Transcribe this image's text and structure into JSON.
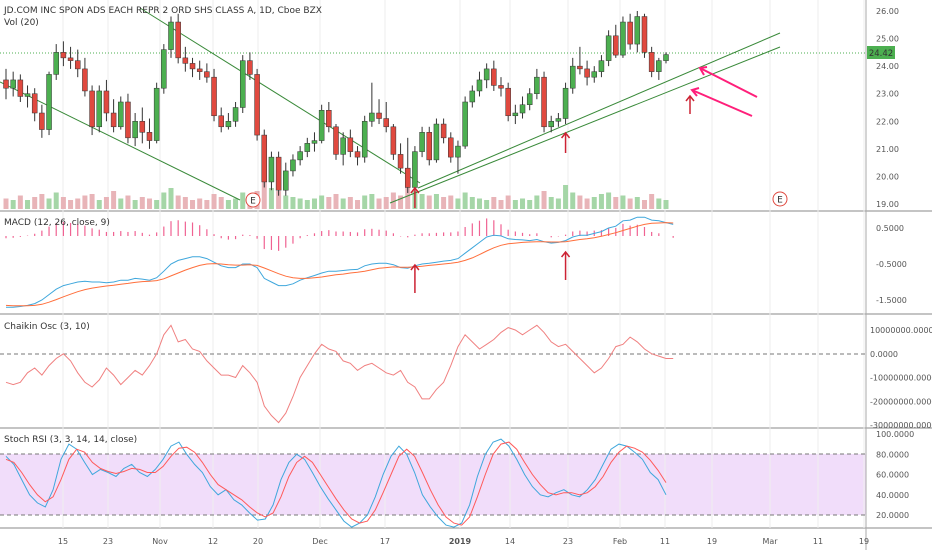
{
  "chart_data": {
    "type": "candlestick",
    "title": "JD.COM INC SPON ADS EACH REPR 2 ORD SHS CLASS A, 1D, Cboe BZX",
    "last_price": "24.42",
    "price_axis_ticks": [
      "26.00",
      "25.00",
      "24.00",
      "23.00",
      "22.00",
      "21.00",
      "20.00",
      "19.00"
    ],
    "time_axis_labels": [
      "15",
      "23",
      "Nov",
      "12",
      "20",
      "Dec",
      "17",
      "2019",
      "14",
      "23",
      "Feb",
      "11",
      "19",
      "Mar",
      "11",
      "19"
    ],
    "volume_label": "Vol (20)",
    "earnings_marker": "E",
    "colors": {
      "up": "#4caf50",
      "down": "#e0493f",
      "vol_up": "#a5d6a7",
      "vol_down": "#e8b4b8",
      "macd": "#3fa7dc",
      "signal": "#ff6f3c",
      "chaikin": "#f08080",
      "rsi_k": "#3fa7dc",
      "rsi_d": "#ff5a5a",
      "rsi_band": "#e7c7f7",
      "trendline": "#3a8a3a",
      "arrow": "#cc2233",
      "pink_arrow": "#ff1f7a"
    },
    "candles": [
      [
        23.5,
        23.9,
        22.8,
        23.2
      ],
      [
        23.2,
        23.8,
        22.9,
        23.5
      ],
      [
        23.5,
        23.7,
        22.7,
        22.9
      ],
      [
        22.9,
        23.3,
        22.5,
        23.0
      ],
      [
        23.0,
        23.2,
        22.0,
        22.3
      ],
      [
        22.3,
        22.6,
        21.4,
        21.7
      ],
      [
        21.7,
        23.8,
        21.5,
        23.7
      ],
      [
        23.7,
        24.8,
        23.5,
        24.5
      ],
      [
        24.5,
        24.9,
        24.0,
        24.3
      ],
      [
        24.3,
        24.7,
        23.9,
        24.2
      ],
      [
        24.2,
        24.6,
        23.6,
        23.9
      ],
      [
        23.9,
        24.3,
        22.9,
        23.1
      ],
      [
        23.1,
        23.3,
        21.5,
        21.8
      ],
      [
        21.8,
        23.3,
        21.6,
        23.1
      ],
      [
        23.1,
        23.5,
        22.0,
        22.3
      ],
      [
        22.3,
        22.8,
        21.6,
        21.8
      ],
      [
        21.8,
        22.9,
        21.7,
        22.7
      ],
      [
        22.7,
        23.0,
        21.2,
        21.4
      ],
      [
        21.4,
        22.3,
        21.1,
        22.0
      ],
      [
        22.0,
        22.5,
        21.2,
        21.6
      ],
      [
        21.6,
        22.1,
        21.0,
        21.3
      ],
      [
        21.3,
        23.4,
        21.2,
        23.2
      ],
      [
        23.2,
        24.8,
        23.0,
        24.6
      ],
      [
        24.6,
        25.8,
        24.3,
        25.6
      ],
      [
        25.6,
        25.9,
        24.1,
        24.3
      ],
      [
        24.3,
        24.7,
        23.8,
        24.1
      ],
      [
        24.1,
        24.3,
        23.6,
        23.9
      ],
      [
        23.9,
        24.2,
        23.5,
        23.8
      ],
      [
        23.8,
        24.1,
        23.4,
        23.6
      ],
      [
        23.6,
        23.9,
        22.0,
        22.2
      ],
      [
        22.2,
        22.5,
        21.6,
        21.8
      ],
      [
        21.8,
        22.3,
        21.7,
        22.0
      ],
      [
        22.0,
        22.7,
        21.8,
        22.5
      ],
      [
        22.5,
        24.4,
        22.3,
        24.2
      ],
      [
        24.2,
        24.5,
        23.5,
        23.7
      ],
      [
        23.7,
        23.9,
        21.3,
        21.5
      ],
      [
        21.5,
        21.7,
        19.6,
        19.8
      ],
      [
        19.8,
        20.9,
        19.5,
        20.7
      ],
      [
        20.7,
        20.9,
        19.3,
        19.5
      ],
      [
        19.5,
        20.5,
        19.3,
        20.2
      ],
      [
        20.2,
        20.8,
        20.0,
        20.6
      ],
      [
        20.6,
        21.1,
        20.4,
        20.9
      ],
      [
        20.9,
        21.4,
        20.7,
        21.2
      ],
      [
        21.2,
        21.6,
        20.9,
        21.3
      ],
      [
        21.3,
        22.6,
        21.2,
        22.4
      ],
      [
        22.4,
        22.7,
        21.6,
        21.8
      ],
      [
        21.8,
        21.9,
        20.6,
        20.8
      ],
      [
        20.8,
        21.6,
        20.4,
        21.4
      ],
      [
        21.4,
        21.7,
        20.7,
        20.9
      ],
      [
        20.9,
        21.1,
        20.4,
        20.7
      ],
      [
        20.7,
        22.2,
        20.5,
        22.0
      ],
      [
        22.0,
        23.4,
        21.8,
        22.3
      ],
      [
        22.3,
        22.8,
        21.9,
        22.1
      ],
      [
        22.1,
        22.7,
        21.6,
        21.8
      ],
      [
        21.8,
        21.9,
        20.6,
        20.8
      ],
      [
        20.8,
        21.2,
        20.1,
        20.3
      ],
      [
        20.3,
        21.4,
        19.4,
        19.6
      ],
      [
        19.6,
        21.1,
        19.5,
        20.9
      ],
      [
        20.9,
        21.8,
        20.7,
        21.6
      ],
      [
        21.6,
        21.8,
        20.4,
        20.6
      ],
      [
        20.6,
        22.1,
        20.5,
        21.9
      ],
      [
        21.9,
        22.1,
        21.2,
        21.4
      ],
      [
        21.4,
        21.6,
        20.5,
        20.7
      ],
      [
        20.7,
        21.3,
        20.1,
        21.1
      ],
      [
        21.1,
        22.9,
        21.0,
        22.7
      ],
      [
        22.7,
        23.3,
        22.5,
        23.1
      ],
      [
        23.1,
        23.8,
        22.9,
        23.5
      ],
      [
        23.5,
        24.1,
        23.2,
        23.9
      ],
      [
        23.9,
        24.2,
        23.1,
        23.3
      ],
      [
        23.3,
        23.6,
        22.9,
        23.2
      ],
      [
        23.2,
        23.4,
        22.0,
        22.2
      ],
      [
        22.2,
        22.6,
        21.9,
        22.3
      ],
      [
        22.3,
        22.9,
        22.1,
        22.6
      ],
      [
        22.6,
        23.2,
        22.4,
        23.0
      ],
      [
        23.0,
        23.9,
        22.8,
        23.6
      ],
      [
        23.6,
        23.8,
        21.6,
        21.8
      ],
      [
        21.8,
        22.2,
        21.6,
        22.0
      ],
      [
        22.0,
        22.3,
        21.8,
        22.1
      ],
      [
        22.1,
        23.4,
        21.9,
        23.2
      ],
      [
        23.2,
        24.3,
        23.0,
        24.0
      ],
      [
        24.0,
        24.7,
        23.7,
        23.9
      ],
      [
        23.9,
        24.2,
        23.3,
        23.6
      ],
      [
        23.6,
        24.0,
        23.4,
        23.8
      ],
      [
        23.8,
        24.4,
        23.6,
        24.2
      ],
      [
        24.2,
        25.3,
        24.0,
        25.1
      ],
      [
        25.1,
        25.5,
        24.3,
        24.4
      ],
      [
        24.4,
        25.8,
        24.3,
        25.6
      ],
      [
        25.6,
        25.9,
        24.6,
        24.8
      ],
      [
        24.8,
        26.0,
        24.5,
        25.8
      ],
      [
        25.8,
        25.9,
        24.3,
        24.5
      ],
      [
        24.5,
        24.7,
        23.6,
        23.8
      ],
      [
        23.8,
        24.3,
        23.5,
        24.2
      ],
      [
        24.2,
        24.5,
        24.1,
        24.42
      ]
    ],
    "volumes": [
      0.35,
      0.3,
      0.45,
      0.3,
      0.4,
      0.5,
      0.35,
      0.55,
      0.4,
      0.3,
      0.35,
      0.45,
      0.5,
      0.3,
      0.4,
      0.6,
      0.35,
      0.45,
      0.3,
      0.4,
      0.35,
      0.3,
      0.55,
      0.7,
      0.45,
      0.4,
      0.3,
      0.35,
      0.3,
      0.5,
      0.4,
      0.3,
      0.35,
      0.55,
      0.45,
      0.6,
      0.95,
      0.7,
      0.6,
      0.45,
      0.4,
      0.35,
      0.3,
      0.35,
      0.45,
      0.4,
      0.5,
      0.35,
      0.4,
      0.3,
      0.45,
      0.5,
      0.35,
      0.4,
      0.55,
      0.45,
      0.85,
      0.6,
      0.5,
      0.45,
      0.5,
      0.4,
      0.45,
      0.35,
      0.55,
      0.4,
      0.35,
      0.3,
      0.4,
      0.3,
      0.45,
      0.3,
      0.35,
      0.3,
      0.45,
      0.6,
      0.4,
      0.35,
      0.8,
      0.55,
      0.45,
      0.35,
      0.4,
      0.5,
      0.55,
      0.4,
      0.45,
      0.35,
      0.4,
      0.3,
      0.5,
      0.35,
      0.3,
      0.25
    ],
    "macd_label": "MACD (12, 26, close, 9)",
    "macd_ticks": [
      "0.5000",
      "-0.5000",
      "-1.5000"
    ],
    "macd_line": [
      -1.7,
      -1.7,
      -1.68,
      -1.65,
      -1.6,
      -1.5,
      -1.35,
      -1.2,
      -1.1,
      -1.05,
      -1.0,
      -0.98,
      -1.0,
      -1.0,
      -1.02,
      -1.0,
      -0.95,
      -0.95,
      -0.9,
      -0.92,
      -0.95,
      -0.88,
      -0.7,
      -0.5,
      -0.4,
      -0.35,
      -0.3,
      -0.3,
      -0.35,
      -0.45,
      -0.55,
      -0.6,
      -0.6,
      -0.5,
      -0.5,
      -0.6,
      -0.9,
      -1.0,
      -1.1,
      -1.1,
      -1.05,
      -0.95,
      -0.88,
      -0.82,
      -0.75,
      -0.7,
      -0.7,
      -0.68,
      -0.66,
      -0.65,
      -0.55,
      -0.5,
      -0.48,
      -0.48,
      -0.52,
      -0.6,
      -0.62,
      -0.55,
      -0.5,
      -0.48,
      -0.45,
      -0.42,
      -0.4,
      -0.35,
      -0.2,
      -0.05,
      0.1,
      0.25,
      0.3,
      0.28,
      0.2,
      0.18,
      0.17,
      0.15,
      0.18,
      0.12,
      0.08,
      0.1,
      0.15,
      0.25,
      0.3,
      0.3,
      0.35,
      0.4,
      0.5,
      0.55,
      0.7,
      0.72,
      0.8,
      0.8,
      0.72,
      0.7,
      0.65,
      0.6
    ],
    "signal_line": [
      -1.65,
      -1.66,
      -1.66,
      -1.66,
      -1.65,
      -1.62,
      -1.56,
      -1.49,
      -1.41,
      -1.34,
      -1.27,
      -1.21,
      -1.17,
      -1.14,
      -1.11,
      -1.09,
      -1.06,
      -1.04,
      -1.01,
      -0.99,
      -0.98,
      -0.96,
      -0.91,
      -0.83,
      -0.75,
      -0.67,
      -0.6,
      -0.54,
      -0.5,
      -0.49,
      -0.5,
      -0.52,
      -0.53,
      -0.53,
      -0.52,
      -0.54,
      -0.61,
      -0.69,
      -0.77,
      -0.84,
      -0.88,
      -0.9,
      -0.9,
      -0.88,
      -0.86,
      -0.83,
      -0.8,
      -0.78,
      -0.75,
      -0.73,
      -0.7,
      -0.66,
      -0.62,
      -0.6,
      -0.58,
      -0.59,
      -0.59,
      -0.58,
      -0.56,
      -0.54,
      -0.52,
      -0.5,
      -0.48,
      -0.45,
      -0.4,
      -0.33,
      -0.24,
      -0.14,
      -0.05,
      0.02,
      0.06,
      0.08,
      0.1,
      0.11,
      0.12,
      0.12,
      0.11,
      0.11,
      0.12,
      0.15,
      0.18,
      0.2,
      0.23,
      0.27,
      0.32,
      0.37,
      0.43,
      0.49,
      0.55,
      0.6,
      0.63,
      0.64,
      0.65,
      0.64
    ],
    "chaikin_label": "Chaikin Osc (3, 10)",
    "chaikin_ticks": [
      "10000000.0000",
      "0.0000",
      "-10000000.0000",
      "-20000000.0000",
      "-30000000.0000"
    ],
    "chaikin": [
      -12,
      -13,
      -12,
      -8,
      -6,
      -9,
      -5,
      -2,
      0,
      -3,
      -8,
      -12,
      -14,
      -11,
      -6,
      -9,
      -13,
      -10,
      -7,
      -9,
      -5,
      0,
      8,
      12,
      5,
      6,
      2,
      1,
      -3,
      -6,
      -9,
      -9,
      -10,
      -5,
      -8,
      -12,
      -22,
      -26,
      -29,
      -25,
      -18,
      -10,
      -5,
      0,
      4,
      2,
      1,
      -3,
      -4,
      -7,
      -5,
      -4,
      -6,
      -8,
      -9,
      -7,
      -12,
      -14,
      -19,
      -19,
      -15,
      -12,
      -5,
      3,
      8,
      5,
      2,
      4,
      6,
      9,
      11,
      10,
      8,
      10,
      12,
      9,
      5,
      3,
      4,
      1,
      -2,
      -5,
      -8,
      -6,
      -2,
      3,
      4,
      7,
      5,
      2,
      0,
      -1,
      -2,
      -2
    ],
    "rsi_label": "Stoch RSI (3, 3, 14, 14, close)",
    "rsi_ticks": [
      "100.0000",
      "80.0000",
      "60.0000",
      "40.0000",
      "20.0000"
    ],
    "rsi_k": [
      78,
      70,
      55,
      40,
      32,
      28,
      45,
      75,
      90,
      85,
      72,
      60,
      65,
      62,
      58,
      66,
      70,
      62,
      58,
      65,
      75,
      88,
      92,
      80,
      70,
      62,
      48,
      40,
      45,
      35,
      30,
      22,
      15,
      16,
      30,
      55,
      72,
      80,
      75,
      62,
      48,
      36,
      25,
      14,
      8,
      12,
      20,
      38,
      60,
      78,
      88,
      80,
      62,
      40,
      28,
      18,
      10,
      8,
      12,
      30,
      58,
      80,
      92,
      95,
      88,
      75,
      60,
      48,
      40,
      38,
      42,
      45,
      40,
      38,
      45,
      55,
      70,
      85,
      90,
      88,
      82,
      75,
      62,
      55,
      40
    ],
    "rsi_d": [
      75,
      72,
      62,
      50,
      40,
      33,
      38,
      55,
      75,
      85,
      82,
      72,
      66,
      63,
      61,
      63,
      66,
      65,
      62,
      62,
      68,
      78,
      86,
      87,
      82,
      72,
      60,
      50,
      45,
      40,
      35,
      28,
      22,
      18,
      22,
      38,
      58,
      72,
      78,
      72,
      60,
      48,
      36,
      25,
      16,
      12,
      14,
      25,
      42,
      60,
      78,
      85,
      78,
      62,
      45,
      30,
      18,
      12,
      10,
      18,
      38,
      60,
      80,
      90,
      92,
      85,
      72,
      60,
      50,
      42,
      40,
      42,
      42,
      40,
      42,
      48,
      58,
      72,
      82,
      88,
      86,
      82,
      74,
      64,
      52
    ],
    "arrows_red_up": [
      {
        "panel": "price",
        "index": 57
      },
      {
        "panel": "price",
        "index": 78
      },
      {
        "panel": "macd",
        "index": 57
      },
      {
        "panel": "macd",
        "index": 78
      }
    ]
  }
}
